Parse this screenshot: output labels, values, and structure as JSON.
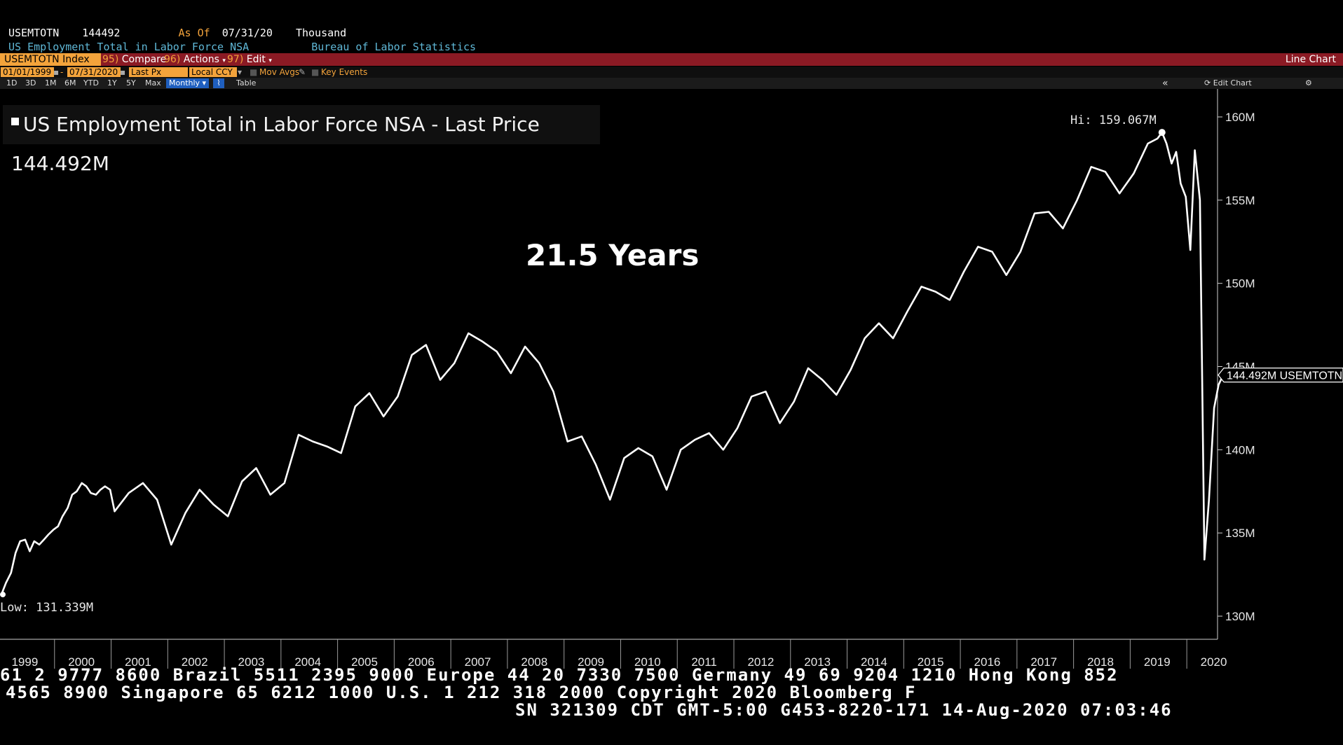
{
  "header": {
    "ticker": "USEMTOTN",
    "value": "144492",
    "as_of_label": "As Of",
    "as_of_date": "07/31/20",
    "units": "Thousand",
    "description": "US Employment Total in Labor Force NSA",
    "source": "Bureau of Labor Statistics"
  },
  "toolbar": {
    "security": "USEMTOTN Index",
    "compare": "Compare",
    "compare_num": "95)",
    "actions": "Actions",
    "actions_num": "96)",
    "edit": "Edit",
    "edit_num": "97)",
    "view_name": "Line Chart"
  },
  "controls": {
    "start_date": "01/01/1999",
    "end_date": "07/31/2020",
    "field": "Last Px",
    "currency": "Local CCY",
    "mov_avgs": "Mov Avgs",
    "key_events": "Key Events",
    "ranges": [
      "1D",
      "3D",
      "1M",
      "6M",
      "YTD",
      "1Y",
      "5Y",
      "Max"
    ],
    "frequency": "Monthly",
    "table": "Table",
    "edit_chart": "Edit Chart"
  },
  "legend_text": "US Employment Total in Labor Force NSA - Last Price",
  "legend_value": "144.492M",
  "annotation": "21.5 Years",
  "colors": {
    "line": "#ffffff",
    "toolbar": "#8b1a24",
    "accent": "#f3a33b",
    "background": "#000000"
  },
  "chart_data": {
    "type": "line",
    "x_unit": "year",
    "y_unit": "M",
    "ylim": [
      129,
      161
    ],
    "xlim": [
      1999.0,
      2020.58
    ],
    "y_ticks": [
      "130M",
      "135M",
      "140M",
      "145M",
      "150M",
      "155M",
      "160M"
    ],
    "x_ticks": [
      "1999",
      "2000",
      "2001",
      "2002",
      "2003",
      "2004",
      "2005",
      "2006",
      "2007",
      "2008",
      "2009",
      "2010",
      "2011",
      "2012",
      "2013",
      "2014",
      "2015",
      "2016",
      "2017",
      "2018",
      "2019",
      "2020"
    ],
    "hi_label": "Hi: 159.067M",
    "low_label": "Low: 131.339M",
    "last_label": "144.492M USEMTOTN",
    "series": [
      {
        "x": [
          1999.0,
          1999.08,
          1999.17,
          1999.25,
          1999.33,
          1999.42,
          1999.5,
          1999.58,
          1999.67,
          1999.75,
          1999.83,
          1999.92,
          2000.0,
          2000.08,
          2000.17,
          2000.25,
          2000.33,
          2000.42,
          2000.5,
          2000.58,
          2000.67,
          2000.75,
          2000.83,
          2000.92,
          2001.0,
          2001.25,
          2001.5,
          2001.75,
          2002.0,
          2002.25,
          2002.5,
          2002.75,
          2003.0,
          2003.25,
          2003.5,
          2003.75,
          2004.0,
          2004.25,
          2004.5,
          2004.75,
          2005.0,
          2005.25,
          2005.5,
          2005.75,
          2006.0,
          2006.25,
          2006.5,
          2006.75,
          2007.0,
          2007.25,
          2007.5,
          2007.75,
          2008.0,
          2008.25,
          2008.5,
          2008.75,
          2009.0,
          2009.25,
          2009.5,
          2009.75,
          2010.0,
          2010.25,
          2010.5,
          2010.75,
          2011.0,
          2011.25,
          2011.5,
          2011.75,
          2012.0,
          2012.25,
          2012.5,
          2012.75,
          2013.0,
          2013.25,
          2013.5,
          2013.75,
          2014.0,
          2014.25,
          2014.5,
          2014.75,
          2015.0,
          2015.25,
          2015.5,
          2015.75,
          2016.0,
          2016.25,
          2016.5,
          2016.75,
          2017.0,
          2017.25,
          2017.5,
          2017.75,
          2018.0,
          2018.25,
          2018.5,
          2018.75,
          2019.0,
          2019.25,
          2019.42,
          2019.5,
          2019.58,
          2019.67,
          2019.75,
          2019.83,
          2019.92,
          2020.0,
          2020.08,
          2020.17,
          2020.25,
          2020.33,
          2020.42,
          2020.5,
          2020.58
        ],
        "values": [
          131.3,
          132.0,
          132.6,
          133.8,
          134.5,
          134.6,
          133.9,
          134.5,
          134.3,
          134.6,
          134.9,
          135.2,
          135.4,
          136.0,
          136.5,
          137.3,
          137.5,
          138.0,
          137.8,
          137.4,
          137.3,
          137.6,
          137.8,
          137.6,
          136.3,
          137.4,
          138.0,
          137.0,
          134.3,
          136.2,
          137.6,
          136.7,
          136.0,
          138.1,
          138.9,
          137.3,
          138.0,
          140.9,
          140.5,
          140.2,
          139.8,
          142.6,
          143.4,
          142.0,
          143.2,
          145.7,
          146.3,
          144.2,
          145.2,
          147.0,
          146.5,
          145.9,
          144.6,
          146.2,
          145.2,
          143.5,
          140.5,
          140.8,
          139.1,
          137.0,
          139.5,
          140.1,
          139.6,
          137.6,
          140.0,
          140.6,
          141.0,
          140.0,
          141.3,
          143.2,
          143.5,
          141.6,
          142.9,
          144.9,
          144.2,
          143.3,
          144.8,
          146.7,
          147.6,
          146.7,
          148.3,
          149.8,
          149.5,
          149.0,
          150.7,
          152.2,
          151.9,
          150.5,
          151.9,
          154.2,
          154.3,
          153.3,
          155.0,
          157.0,
          156.7,
          155.4,
          156.6,
          158.4,
          158.7,
          159.07,
          158.4,
          157.2,
          157.9,
          156.0,
          155.2,
          152.0,
          158.0,
          155.0,
          133.4,
          137.0,
          142.5,
          143.9,
          144.49
        ]
      }
    ]
  },
  "footer": {
    "line1": "61 2 9777 8600 Brazil 5511 2395 9000 Europe 44 20 7330 7500 Germany 49 69 9204 1210 Hong Kong 852",
    "line2": "4565 8900       Singapore 65 6212 1000       U.S. 1 212 318 2000       Copyright 2020 Bloomberg F",
    "line3": "SN 321309 CDT  GMT-5:00 G453-8220-171 14-Aug-2020 07:03:46"
  }
}
